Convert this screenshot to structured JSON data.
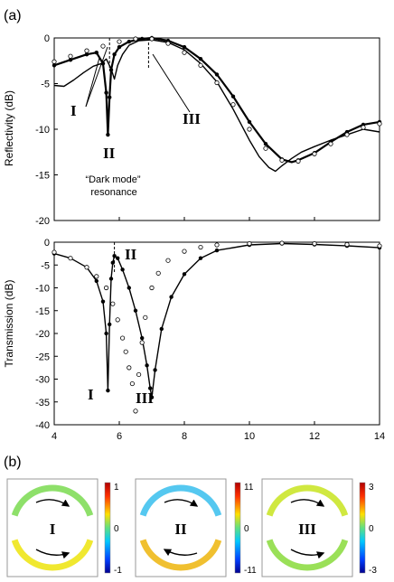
{
  "panel_labels": {
    "a": "(a)",
    "b": "(b)"
  },
  "chart_data": [
    {
      "type": "line",
      "ylabel": "Reflectivity (dB)",
      "xlabel": "",
      "xlim": [
        4,
        14
      ],
      "ylim": [
        -20,
        0
      ],
      "xticks": [
        4,
        6,
        8,
        10,
        12,
        14
      ],
      "yticks": [
        0,
        -5,
        -10,
        -15,
        -20
      ],
      "show_xtick_labels": false,
      "grid": false,
      "annotations": {
        "I": "I",
        "II": "II",
        "III": "III",
        "dark_1": "“Dark mode”",
        "dark_2": "resonance"
      },
      "dashed_markers_x": [
        5.7,
        6.9
      ],
      "series": [
        {
          "style": "solid",
          "x": [
            4,
            4.3,
            4.6,
            4.9,
            5.2,
            5.45,
            5.6,
            5.75,
            5.85,
            5.95,
            6.1,
            6.3,
            6.6,
            7.0,
            7.5,
            8.0,
            8.5,
            9.0,
            9.5,
            10.0,
            10.3,
            10.6,
            10.8,
            11.0,
            11.3,
            11.6,
            12.0,
            12.5,
            13.0,
            13.5,
            14
          ],
          "y": [
            -5.2,
            -5.3,
            -4.6,
            -3.8,
            -3.1,
            -2.8,
            -2.3,
            -3.4,
            -4.5,
            -3.0,
            -1.8,
            -0.8,
            -0.3,
            -0.2,
            -0.5,
            -1.3,
            -2.8,
            -4.8,
            -7.8,
            -11.2,
            -13.0,
            -14.2,
            -14.6,
            -14.0,
            -13.2,
            -12.5,
            -11.9,
            -11.2,
            -10.6,
            -10.0,
            -10.3
          ]
        },
        {
          "style": "solid-bold",
          "x": [
            4,
            4.5,
            5.0,
            5.3,
            5.5,
            5.6,
            5.65,
            5.7,
            5.75,
            5.85,
            6.0,
            6.3,
            6.7,
            7.0,
            7.5,
            8.0,
            8.5,
            9.0,
            9.5,
            10.0,
            10.5,
            11.0,
            11.3,
            11.5,
            12.0,
            12.5,
            13.0,
            13.5,
            14
          ],
          "y": [
            -3.0,
            -2.4,
            -1.8,
            -1.6,
            -2.8,
            -6.0,
            -10.6,
            -6.5,
            -3.5,
            -1.8,
            -1.0,
            -0.4,
            -0.1,
            0,
            -0.3,
            -1.0,
            -2.3,
            -4.0,
            -6.4,
            -9.2,
            -11.6,
            -13.3,
            -13.6,
            -13.4,
            -12.6,
            -11.4,
            -10.3,
            -9.5,
            -9.2
          ]
        },
        {
          "style": "filled-dots",
          "x": [
            4,
            4.5,
            5.0,
            5.3,
            5.5,
            5.6,
            5.65,
            5.7,
            5.75,
            5.85,
            6.0,
            6.3,
            6.7,
            7.0,
            7.5,
            8.0,
            8.5,
            9.0,
            9.5,
            10.0,
            10.5,
            11.0,
            11.5,
            12.0,
            12.5,
            13.0,
            13.5,
            14
          ],
          "y": [
            -3.0,
            -2.4,
            -1.8,
            -1.6,
            -2.8,
            -6.0,
            -10.6,
            -6.5,
            -3.5,
            -1.8,
            -1.0,
            -0.4,
            -0.1,
            0,
            -0.3,
            -1.0,
            -2.3,
            -4.0,
            -6.4,
            -9.2,
            -11.6,
            -13.3,
            -13.4,
            -12.6,
            -11.4,
            -10.3,
            -9.5,
            -9.2
          ]
        },
        {
          "style": "open-circles",
          "x": [
            4,
            4.5,
            5.0,
            5.5,
            6.0,
            6.5,
            7.0,
            7.5,
            8.0,
            8.5,
            9.0,
            9.5,
            10.0,
            10.5,
            11.0,
            11.5,
            12.0,
            12.5,
            13.0,
            13.5,
            14
          ],
          "y": [
            -2.6,
            -2.0,
            -1.4,
            -0.9,
            -0.4,
            -0.1,
            -0.1,
            -0.6,
            -1.6,
            -3.0,
            -4.9,
            -7.3,
            -10.0,
            -12.1,
            -13.4,
            -13.5,
            -12.7,
            -11.6,
            -10.6,
            -9.8,
            -9.4
          ]
        }
      ]
    },
    {
      "type": "line",
      "ylabel": "Transmission (dB)",
      "xlabel": "",
      "xlim": [
        4,
        14
      ],
      "ylim": [
        -40,
        0
      ],
      "xticks": [
        4,
        6,
        8,
        10,
        12,
        14
      ],
      "yticks": [
        0,
        -5,
        -10,
        -15,
        -20,
        -25,
        -30,
        -35,
        -40
      ],
      "show_xtick_labels": true,
      "grid": false,
      "annotations": {
        "I": "I",
        "II": "II",
        "III": "III"
      },
      "dashed_markers_x": [
        5.85
      ],
      "series": [
        {
          "style": "solid",
          "x": [
            4,
            4.5,
            5.0,
            5.3,
            5.5,
            5.6,
            5.65,
            5.7,
            5.75,
            5.8,
            5.85,
            5.95,
            6.1,
            6.3,
            6.5,
            6.7,
            6.85,
            6.95,
            7.0,
            7.1,
            7.3,
            7.6,
            8.0,
            8.5,
            9.0,
            10,
            11,
            12,
            13,
            14
          ],
          "y": [
            -2.5,
            -3.5,
            -5.5,
            -8.5,
            -13.0,
            -20.0,
            -32.5,
            -18.0,
            -8.0,
            -4.5,
            -3.0,
            -3.5,
            -6.0,
            -10.0,
            -15.0,
            -21.0,
            -27.0,
            -32.0,
            -34.0,
            -28.0,
            -19.0,
            -12.0,
            -7.0,
            -3.5,
            -1.8,
            -0.6,
            -0.3,
            -0.5,
            -0.8,
            -1.2
          ]
        },
        {
          "style": "filled-dots",
          "x": [
            4,
            4.5,
            5.0,
            5.3,
            5.5,
            5.6,
            5.65,
            5.7,
            5.75,
            5.8,
            5.85,
            5.95,
            6.1,
            6.3,
            6.5,
            6.7,
            6.85,
            6.95,
            7.0,
            7.1,
            7.3,
            7.6,
            8.0,
            8.5,
            9.0,
            10,
            11,
            12,
            13,
            14
          ],
          "y": [
            -2.5,
            -3.5,
            -5.5,
            -8.5,
            -13.0,
            -20.0,
            -32.5,
            -18.0,
            -8.0,
            -4.5,
            -3.0,
            -3.5,
            -6.0,
            -10.0,
            -15.0,
            -21.0,
            -27.0,
            -32.0,
            -34.0,
            -28.0,
            -19.0,
            -12.0,
            -7.0,
            -3.5,
            -1.8,
            -0.6,
            -0.3,
            -0.5,
            -0.8,
            -1.2
          ]
        },
        {
          "style": "open-circles",
          "x": [
            4,
            4.5,
            5.0,
            5.3,
            5.6,
            5.8,
            5.95,
            6.1,
            6.2,
            6.3,
            6.4,
            6.5,
            6.6,
            6.7,
            6.8,
            7.0,
            7.2,
            7.5,
            8.0,
            8.5,
            9.0,
            10,
            11,
            12,
            13,
            14
          ],
          "y": [
            -2.2,
            -3.5,
            -5.5,
            -7.5,
            -10.0,
            -13.5,
            -17.0,
            -21.0,
            -24.0,
            -27.5,
            -31.0,
            -37.0,
            -29.0,
            -22.0,
            -16.5,
            -10.0,
            -6.8,
            -4.0,
            -2.0,
            -1.1,
            -0.6,
            -0.3,
            -0.2,
            -0.3,
            -0.5,
            -0.8
          ]
        }
      ]
    }
  ],
  "field_maps": [
    {
      "label": "I",
      "colorbar_max": "1",
      "colorbar_mid": "0",
      "colorbar_min": "-1",
      "top_color": "#8ee06a",
      "bottom_color": "#f0e830",
      "top_arrow": "right",
      "bottom_arrow": "right"
    },
    {
      "label": "II",
      "colorbar_max": "11",
      "colorbar_mid": "0",
      "colorbar_min": "-11",
      "top_color": "#55c8f0",
      "bottom_color": "#f0c030",
      "top_arrow": "right",
      "bottom_arrow": "left"
    },
    {
      "label": "III",
      "colorbar_max": "3",
      "colorbar_mid": "0",
      "colorbar_min": "-3",
      "top_color": "#d0e840",
      "bottom_color": "#9ae058",
      "top_arrow": "right",
      "bottom_arrow": "right"
    }
  ]
}
